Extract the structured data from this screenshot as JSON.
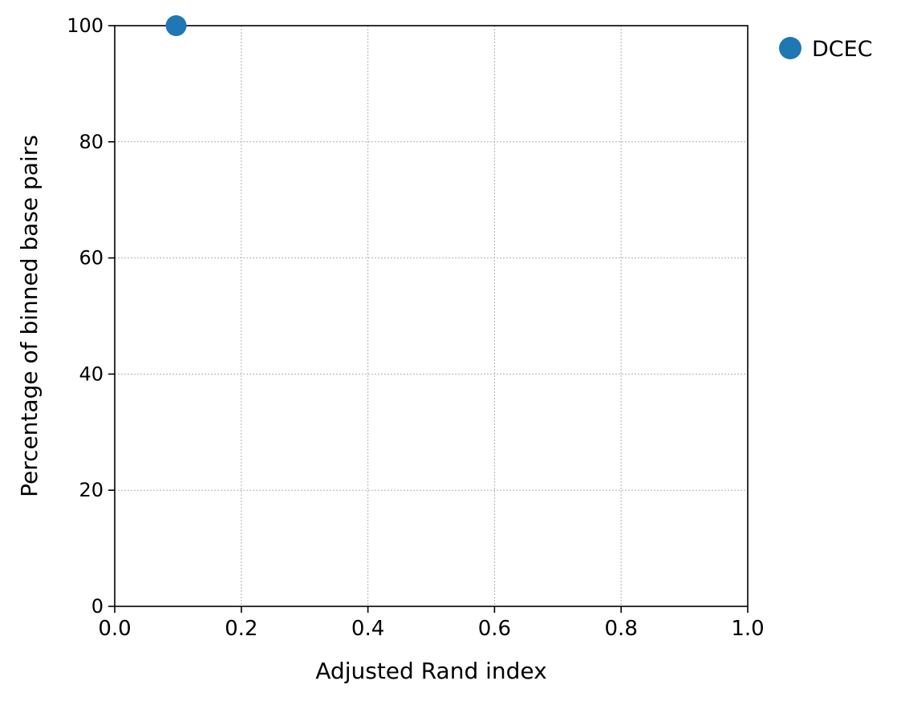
{
  "chart_data": {
    "type": "scatter",
    "title": "",
    "xlabel": "Adjusted Rand index",
    "ylabel": "Percentage of binned base pairs",
    "xlim": [
      0.0,
      1.0
    ],
    "ylim": [
      0,
      100
    ],
    "xticks": [
      "0.0",
      "0.2",
      "0.4",
      "0.6",
      "0.8",
      "1.0"
    ],
    "yticks": [
      "0",
      "20",
      "40",
      "60",
      "80",
      "100"
    ],
    "grid": true,
    "legend_position": "outside-top-right",
    "series": [
      {
        "name": "DCEC",
        "color": "#1f77b4",
        "points": [
          {
            "x": 0.097,
            "y": 100
          }
        ]
      }
    ]
  }
}
